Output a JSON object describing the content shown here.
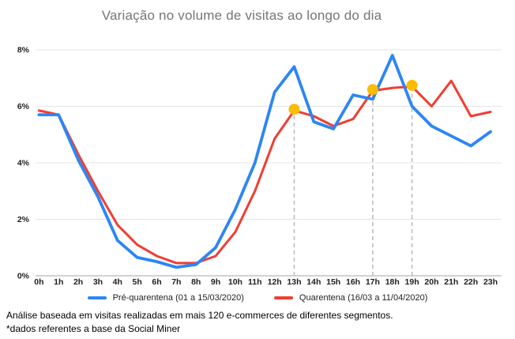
{
  "chart_data": {
    "type": "line",
    "title": "Variação no volume de visitas ao longo do dia",
    "x": [
      "0h",
      "1h",
      "2h",
      "3h",
      "4h",
      "5h",
      "6h",
      "7h",
      "8h",
      "9h",
      "10h",
      "11h",
      "12h",
      "13h",
      "14h",
      "15h",
      "16h",
      "17h",
      "18h",
      "19h",
      "20h",
      "21h",
      "22h",
      "23h"
    ],
    "xlabel": "",
    "ylabel": "",
    "ylim": [
      0,
      8
    ],
    "yticks": [
      0,
      2,
      4,
      6,
      8
    ],
    "ytick_suffix": "%",
    "grid": true,
    "legend_position": "bottom",
    "series": [
      {
        "name": "Pré-quarentena (01 a 15/03/2020)",
        "color": "#2D86F3",
        "values": [
          5.7,
          5.7,
          4.1,
          2.8,
          1.25,
          0.65,
          0.5,
          0.3,
          0.4,
          1.0,
          2.35,
          4.0,
          6.5,
          7.4,
          5.45,
          5.2,
          6.4,
          6.25,
          7.8,
          6.0,
          5.3,
          4.95,
          4.6,
          5.1
        ]
      },
      {
        "name": "Quarentena (16/03 a 11/04/2020)",
        "color": "#EF3E33",
        "values": [
          5.85,
          5.7,
          4.3,
          3.0,
          1.8,
          1.1,
          0.7,
          0.45,
          0.45,
          0.7,
          1.55,
          3.0,
          4.85,
          5.85,
          5.65,
          5.3,
          5.55,
          6.55,
          6.65,
          6.7,
          6.0,
          6.9,
          5.65,
          5.8
        ]
      }
    ],
    "highlights": {
      "series_index": 1,
      "hours": [
        "13h",
        "17h",
        "19h"
      ],
      "marker_color": "#FBBC04"
    },
    "colors": {
      "grid": "#E4E4E4",
      "axis_line": "#C4C4C4",
      "dashed_guide": "#BDBDBD",
      "axis_text": "#1F1F1F",
      "title_text": "#757575"
    }
  },
  "footnotes": {
    "line1": "Análise baseada em visitas realizadas em mais 120  e-commerces de diferentes segmentos.",
    "line2": "*dados referentes a base da Social Miner"
  }
}
